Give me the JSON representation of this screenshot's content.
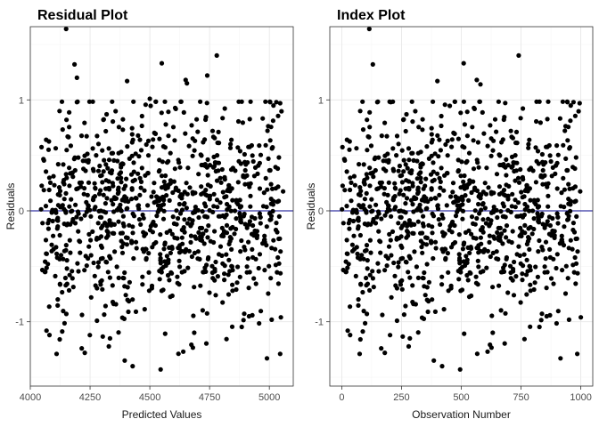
{
  "colors": {
    "point": "#000000",
    "reference_line": "#00008b",
    "grid": "#ebebeb",
    "border": "#333333"
  },
  "chart_data": [
    {
      "type": "scatter",
      "title": "Residual Plot",
      "xlabel": "Predicted Values",
      "ylabel": "Residuals",
      "xlim": [
        4000,
        5100
      ],
      "ylim": [
        -1.58,
        1.66
      ],
      "xticks": [
        4000,
        4250,
        4500,
        4750,
        5000
      ],
      "xtick_labels": [
        "4000",
        "4250",
        "4500",
        "4750",
        "5000"
      ],
      "yticks": [
        -1,
        0,
        1
      ],
      "ytick_labels": [
        "-1",
        "0",
        "1"
      ],
      "reference_line": {
        "y": 0,
        "color": "#00008b"
      },
      "grid": true,
      "n_points": 1000,
      "x_range": [
        4045,
        5060
      ],
      "y_range": [
        -1.45,
        1.64
      ],
      "highlight_points": [
        {
          "x": 4150,
          "y": 1.64
        },
        {
          "x": 4780,
          "y": 1.4
        },
        {
          "x": 4550,
          "y": 1.33
        },
        {
          "x": 4185,
          "y": 1.32
        },
        {
          "x": 4740,
          "y": 1.22
        },
        {
          "x": 4195,
          "y": 1.2
        },
        {
          "x": 4650,
          "y": 1.18
        },
        {
          "x": 4405,
          "y": 1.17
        },
        {
          "x": 4655,
          "y": 1.15
        },
        {
          "x": 4500,
          "y": 1.01
        },
        {
          "x": 5045,
          "y": 0.97
        },
        {
          "x": 4068,
          "y": -1.08
        },
        {
          "x": 4080,
          "y": -1.12
        },
        {
          "x": 4110,
          "y": -1.29
        },
        {
          "x": 4215,
          "y": -1.24
        },
        {
          "x": 4228,
          "y": -1.28
        },
        {
          "x": 4395,
          "y": -1.35
        },
        {
          "x": 4428,
          "y": -1.4
        },
        {
          "x": 4545,
          "y": -1.43
        },
        {
          "x": 4640,
          "y": -1.27
        },
        {
          "x": 4990,
          "y": -1.33
        },
        {
          "x": 5045,
          "y": -1.29
        },
        {
          "x": 5048,
          "y": -0.96
        }
      ]
    },
    {
      "type": "scatter",
      "title": "Index Plot",
      "xlabel": "Observation Number",
      "ylabel": "Residuals",
      "xlim": [
        -50,
        1050
      ],
      "ylim": [
        -1.58,
        1.66
      ],
      "xticks": [
        0,
        250,
        500,
        750,
        1000
      ],
      "xtick_labels": [
        "0",
        "250",
        "500",
        "750",
        "1000"
      ],
      "yticks": [
        -1,
        0,
        1
      ],
      "ytick_labels": [
        "-1",
        "0",
        "1"
      ],
      "reference_line": {
        "y": 0,
        "color": "#00008b"
      },
      "grid": true,
      "n_points": 1000,
      "x_range": [
        1,
        1000
      ],
      "y_range": [
        -1.45,
        1.64
      ],
      "highlight_points": [
        {
          "x": 115,
          "y": 1.64
        },
        {
          "x": 740,
          "y": 1.4
        },
        {
          "x": 510,
          "y": 1.33
        },
        {
          "x": 130,
          "y": 1.32
        },
        {
          "x": 565,
          "y": 1.18
        },
        {
          "x": 400,
          "y": 1.17
        },
        {
          "x": 580,
          "y": 1.14
        },
        {
          "x": 205,
          "y": 0.98
        },
        {
          "x": 995,
          "y": 0.97
        },
        {
          "x": 25,
          "y": -1.08
        },
        {
          "x": 35,
          "y": -1.12
        },
        {
          "x": 75,
          "y": -1.29
        },
        {
          "x": 165,
          "y": -1.24
        },
        {
          "x": 180,
          "y": -1.28
        },
        {
          "x": 385,
          "y": -1.35
        },
        {
          "x": 420,
          "y": -1.4
        },
        {
          "x": 495,
          "y": -1.43
        },
        {
          "x": 610,
          "y": -1.27
        },
        {
          "x": 915,
          "y": -1.33
        },
        {
          "x": 985,
          "y": -1.29
        },
        {
          "x": 1000,
          "y": -0.96
        }
      ]
    }
  ]
}
